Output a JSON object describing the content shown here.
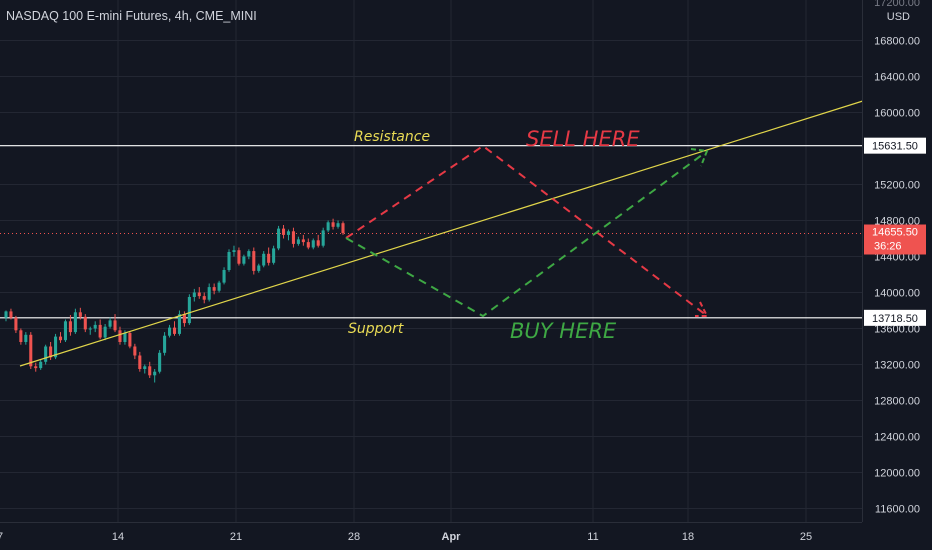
{
  "header": {
    "symbol_title": "NASDAQ 100 E-mini Futures, 4h, CME_MINI"
  },
  "price_axis": {
    "currency": "USD",
    "ticks": [
      "16800.00",
      "16400.00",
      "16000.00",
      "15200.00",
      "14800.00",
      "14400.00",
      "14000.00",
      "13600.00",
      "13200.00",
      "12800.00",
      "12400.00",
      "12000.00",
      "11600.00"
    ],
    "top_partial": "17200.00"
  },
  "time_axis": {
    "ticks": [
      "14",
      "21",
      "28",
      "Apr",
      "11",
      "18",
      "25"
    ],
    "left_partial": "7"
  },
  "levels": {
    "resistance": {
      "price": 15631.5,
      "label": "15631.50",
      "text": "Resistance"
    },
    "support": {
      "price": 13718.5,
      "label": "13718.50",
      "text": "Support"
    },
    "current": {
      "price": 14655.5,
      "label": "14655.50",
      "countdown": "36:26"
    }
  },
  "annotations": {
    "sell": "SELL HERE",
    "buy": "BUY HERE"
  },
  "colors": {
    "background": "#131722",
    "grid": "#232733",
    "text": "#d1d4dc",
    "up": "#26a69a",
    "down": "#ef5350",
    "trend": "#e0d54a",
    "label_yellow": "#eadc55",
    "sell": "#e53945",
    "buy": "#3ea844",
    "level_line": "#ffffff"
  },
  "chart_data": {
    "type": "candlestick",
    "title": "NASDAQ 100 E-mini Futures, 4h, CME_MINI",
    "y_unit": "USD",
    "ylim": [
      11450,
      17250
    ],
    "x_ticks": [
      "7",
      "14",
      "21",
      "28",
      "Apr",
      "11",
      "18",
      "25"
    ],
    "grid": true,
    "candles": [
      [
        13720,
        13800,
        13680,
        13790
      ],
      [
        13790,
        13820,
        13700,
        13720
      ],
      [
        13720,
        13740,
        13550,
        13580
      ],
      [
        13580,
        13600,
        13420,
        13450
      ],
      [
        13450,
        13560,
        13420,
        13530
      ],
      [
        13530,
        13560,
        13150,
        13180
      ],
      [
        13180,
        13220,
        13120,
        13160
      ],
      [
        13160,
        13250,
        13140,
        13230
      ],
      [
        13230,
        13420,
        13200,
        13400
      ],
      [
        13400,
        13450,
        13250,
        13280
      ],
      [
        13280,
        13540,
        13260,
        13510
      ],
      [
        13510,
        13560,
        13440,
        13470
      ],
      [
        13470,
        13700,
        13450,
        13680
      ],
      [
        13680,
        13750,
        13520,
        13560
      ],
      [
        13560,
        13820,
        13540,
        13780
      ],
      [
        13780,
        13830,
        13700,
        13730
      ],
      [
        13730,
        13760,
        13560,
        13590
      ],
      [
        13590,
        13620,
        13530,
        13600
      ],
      [
        13600,
        13680,
        13560,
        13640
      ],
      [
        13640,
        13700,
        13480,
        13500
      ],
      [
        13500,
        13650,
        13470,
        13620
      ],
      [
        13620,
        13720,
        13600,
        13690
      ],
      [
        13690,
        13760,
        13560,
        13580
      ],
      [
        13580,
        13620,
        13420,
        13450
      ],
      [
        13450,
        13580,
        13420,
        13550
      ],
      [
        13550,
        13570,
        13380,
        13400
      ],
      [
        13400,
        13430,
        13260,
        13300
      ],
      [
        13300,
        13340,
        13120,
        13150
      ],
      [
        13150,
        13200,
        13100,
        13180
      ],
      [
        13180,
        13230,
        13050,
        13080
      ],
      [
        13080,
        13150,
        13000,
        13120
      ],
      [
        13120,
        13360,
        13100,
        13330
      ],
      [
        13330,
        13560,
        13300,
        13520
      ],
      [
        13520,
        13640,
        13500,
        13610
      ],
      [
        13610,
        13680,
        13520,
        13540
      ],
      [
        13540,
        13800,
        13520,
        13760
      ],
      [
        13760,
        13790,
        13620,
        13660
      ],
      [
        13660,
        13980,
        13640,
        13950
      ],
      [
        13950,
        14040,
        13900,
        14000
      ],
      [
        14000,
        14060,
        13930,
        13960
      ],
      [
        13960,
        14000,
        13880,
        13920
      ],
      [
        13920,
        14100,
        13900,
        14060
      ],
      [
        14060,
        14100,
        13980,
        14020
      ],
      [
        14020,
        14130,
        14000,
        14110
      ],
      [
        14110,
        14280,
        14090,
        14250
      ],
      [
        14250,
        14480,
        14230,
        14450
      ],
      [
        14450,
        14520,
        14400,
        14470
      ],
      [
        14470,
        14500,
        14300,
        14320
      ],
      [
        14320,
        14420,
        14300,
        14400
      ],
      [
        14400,
        14480,
        14370,
        14460
      ],
      [
        14460,
        14500,
        14200,
        14240
      ],
      [
        14240,
        14320,
        14220,
        14300
      ],
      [
        14300,
        14460,
        14280,
        14430
      ],
      [
        14430,
        14500,
        14300,
        14330
      ],
      [
        14330,
        14520,
        14310,
        14490
      ],
      [
        14490,
        14740,
        14470,
        14710
      ],
      [
        14710,
        14750,
        14600,
        14640
      ],
      [
        14640,
        14700,
        14580,
        14680
      ],
      [
        14680,
        14720,
        14500,
        14540
      ],
      [
        14540,
        14620,
        14520,
        14590
      ],
      [
        14590,
        14640,
        14520,
        14560
      ],
      [
        14560,
        14600,
        14480,
        14500
      ],
      [
        14500,
        14600,
        14480,
        14580
      ],
      [
        14580,
        14640,
        14500,
        14520
      ],
      [
        14520,
        14720,
        14500,
        14690
      ],
      [
        14690,
        14800,
        14670,
        14780
      ],
      [
        14780,
        14820,
        14700,
        14730
      ],
      [
        14730,
        14800,
        14710,
        14770
      ],
      [
        14770,
        14790,
        14640,
        14660
      ]
    ]
  }
}
